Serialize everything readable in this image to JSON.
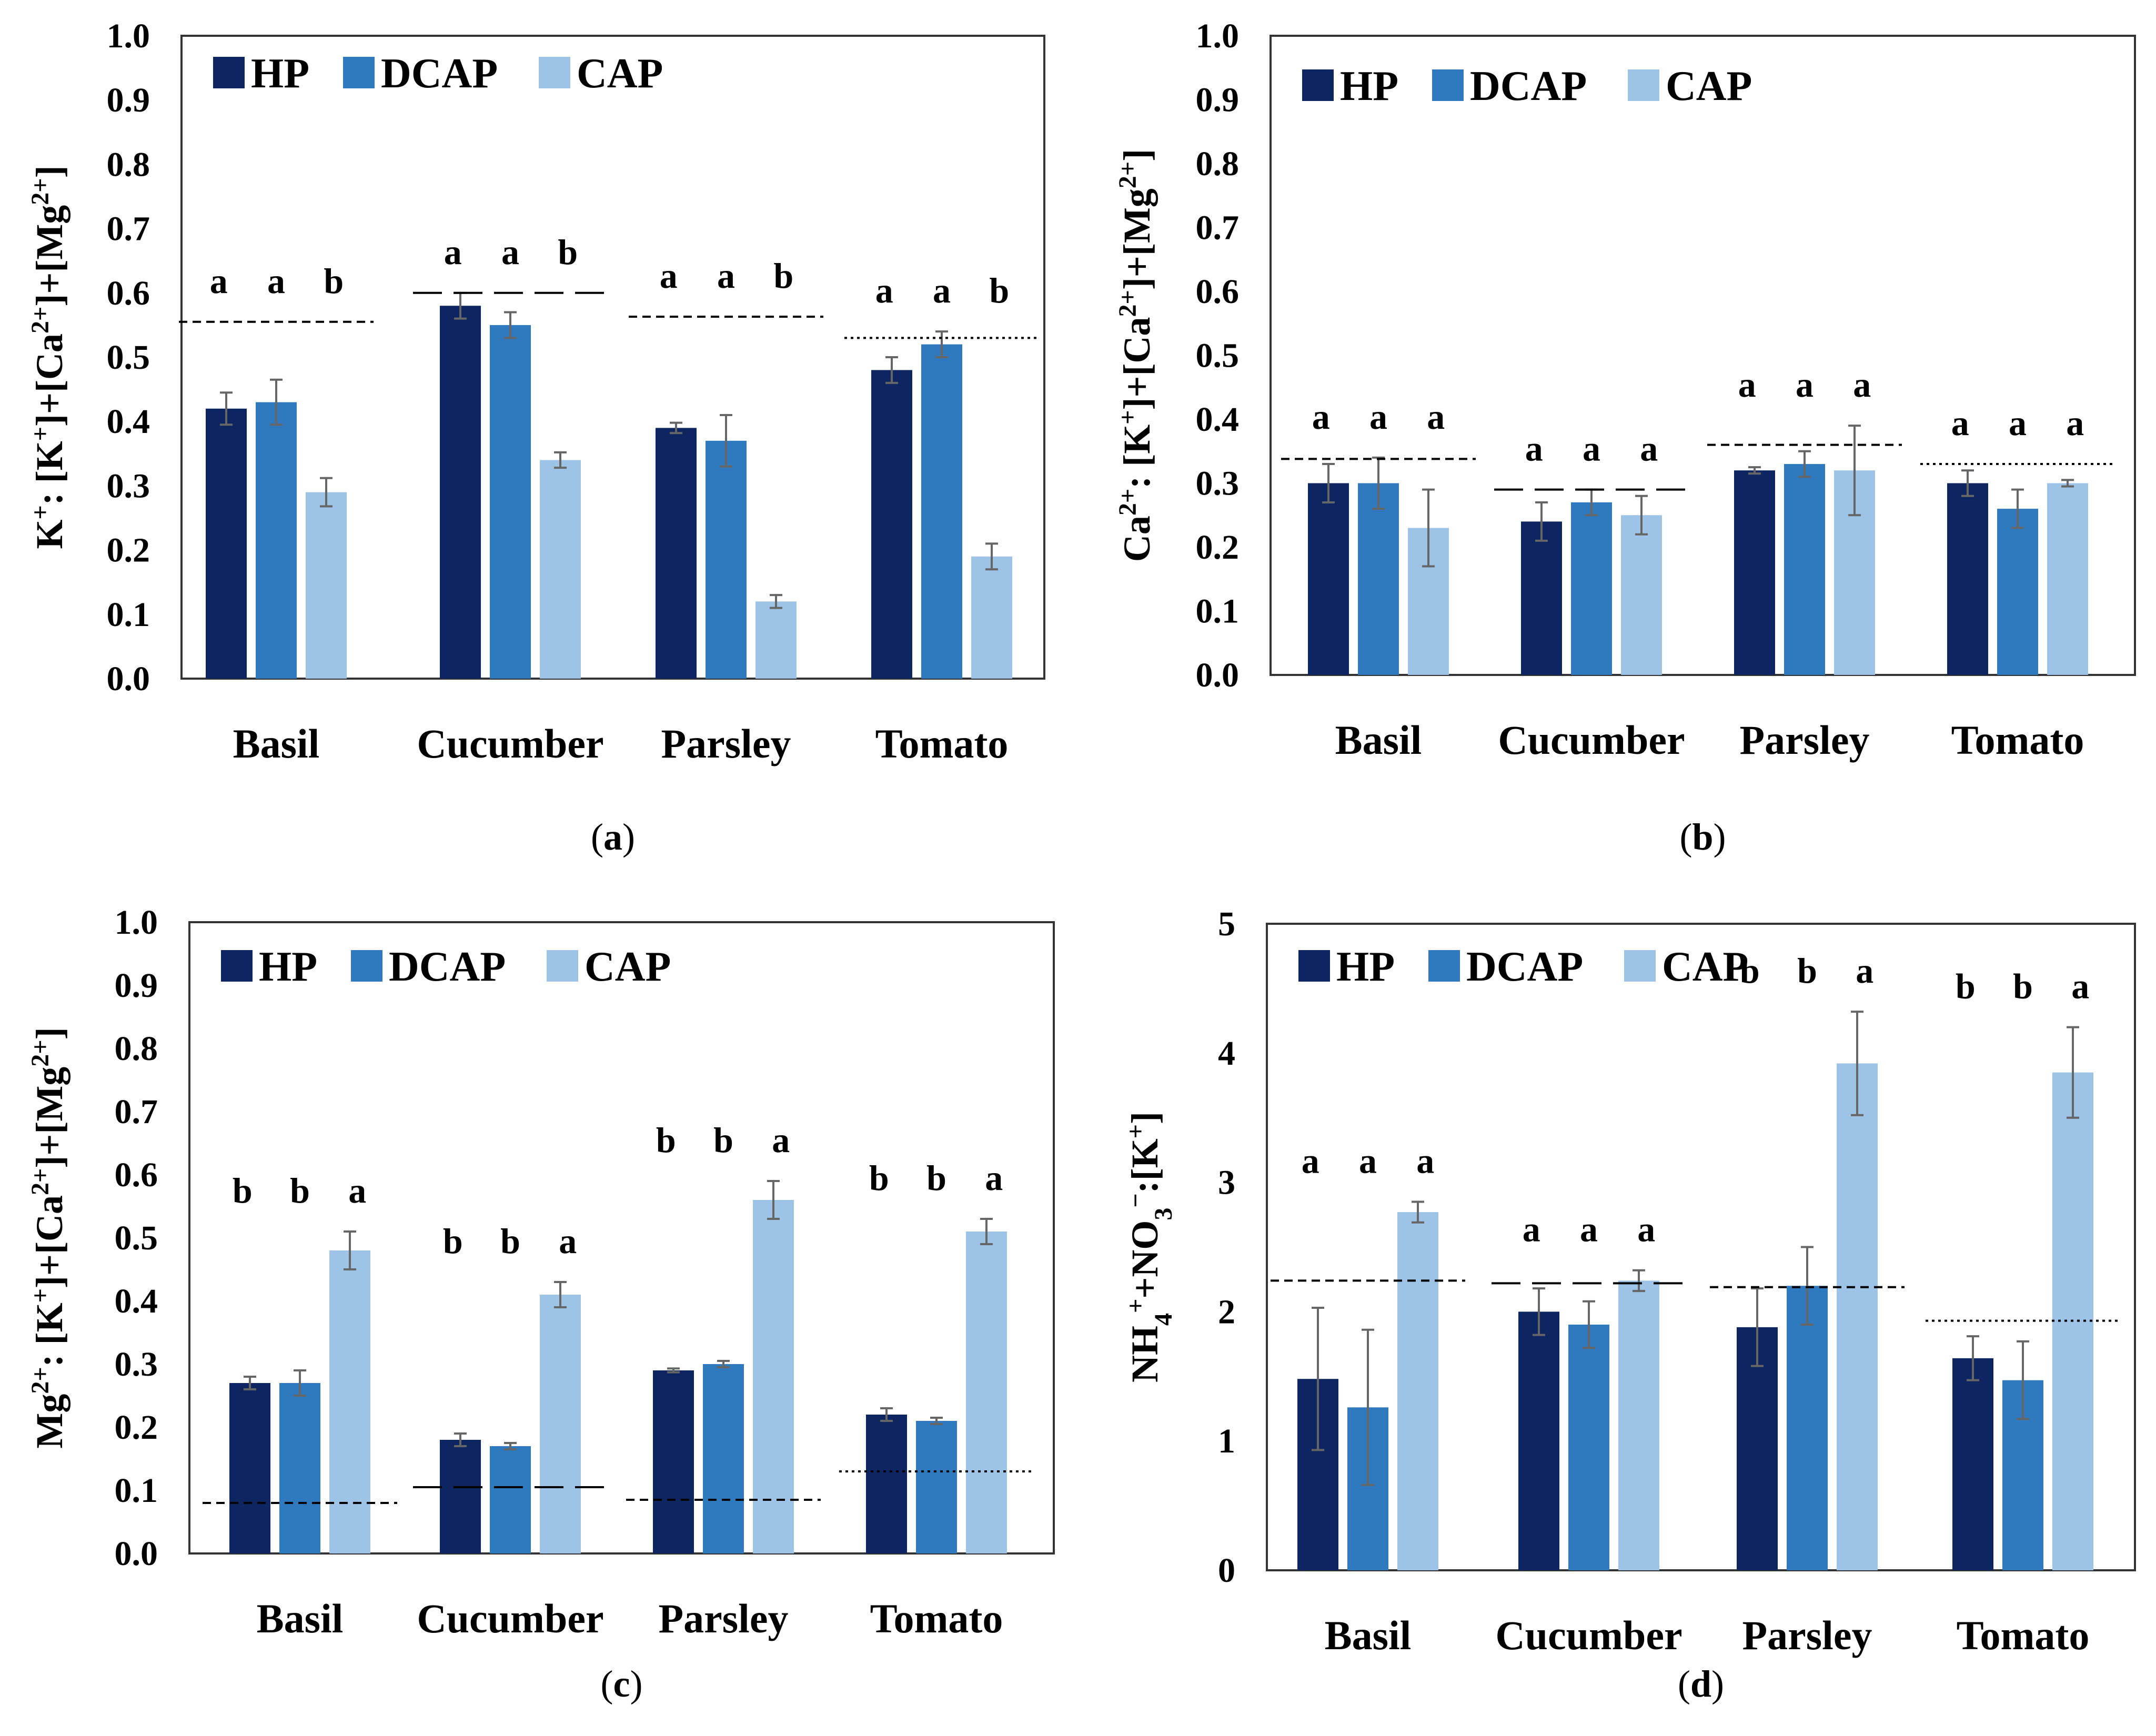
{
  "colors": {
    "HP": "#0d2560",
    "DCAP": "#2f7abf",
    "CAP": "#9dc3e6",
    "frame": "#333333",
    "err": "#666666"
  },
  "charts": [
    {
      "id": "a",
      "panel_label": [
        "(",
        "a",
        ")"
      ],
      "ylabel": [
        {
          "t": "K"
        },
        {
          "t": "+",
          "sup": true
        },
        {
          "t": ": [K"
        },
        {
          "t": "+",
          "sup": true
        },
        {
          "t": "]+[Ca"
        },
        {
          "t": "2+",
          "sup": true
        },
        {
          "t": "]+[Mg"
        },
        {
          "t": "2+",
          "sup": true
        },
        {
          "t": "]"
        }
      ],
      "yticks": [
        "0.0",
        "0.1",
        "0.2",
        "0.3",
        "0.4",
        "0.5",
        "0.6",
        "0.7",
        "0.8",
        "0.9",
        "1.0"
      ],
      "ymax": 1.0,
      "legend": [
        "HP",
        "DCAP",
        "CAP"
      ],
      "chart_data": {
        "type": "bar",
        "categories": [
          "Basil",
          "Cucumber",
          "Parsley",
          "Tomato"
        ],
        "series": [
          {
            "name": "HP",
            "values": [
              0.42,
              0.58,
              0.39,
              0.48
            ],
            "errors": [
              0.025,
              0.02,
              0.008,
              0.02
            ]
          },
          {
            "name": "DCAP",
            "values": [
              0.43,
              0.55,
              0.37,
              0.52
            ],
            "errors": [
              0.035,
              0.02,
              0.04,
              0.02
            ]
          },
          {
            "name": "CAP",
            "values": [
              0.29,
              0.34,
              0.12,
              0.19
            ],
            "errors": [
              0.022,
              0.012,
              0.01,
              0.02
            ]
          }
        ],
        "letters": [
          [
            "a",
            "a",
            "b"
          ],
          [
            "a",
            "a",
            "b"
          ],
          [
            "a",
            "a",
            "b"
          ],
          [
            "a",
            "a",
            "b"
          ]
        ],
        "reference_lines": [
          {
            "value": 0.555,
            "style": "dashed"
          },
          {
            "value": 0.6,
            "style": "longdash"
          },
          {
            "value": 0.563,
            "style": "dashed"
          },
          {
            "value": 0.53,
            "style": "dotted"
          }
        ],
        "ylim": [
          0,
          1.0
        ]
      }
    },
    {
      "id": "b",
      "panel_label": [
        "(",
        "b",
        ")"
      ],
      "ylabel": [
        {
          "t": "Ca"
        },
        {
          "t": "2+",
          "sup": true
        },
        {
          "t": ": [K"
        },
        {
          "t": "+",
          "sup": true
        },
        {
          "t": "]+[Ca"
        },
        {
          "t": "2+",
          "sup": true
        },
        {
          "t": "]+[Mg"
        },
        {
          "t": "2+",
          "sup": true
        },
        {
          "t": "]"
        }
      ],
      "yticks": [
        "0.0",
        "0.1",
        "0.2",
        "0.3",
        "0.4",
        "0.5",
        "0.6",
        "0.7",
        "0.8",
        "0.9",
        "1.0"
      ],
      "ymax": 1.0,
      "legend": [
        "HP",
        "DCAP",
        "CAP"
      ],
      "chart_data": {
        "type": "bar",
        "categories": [
          "Basil",
          "Cucumber",
          "Parsley",
          "Tomato"
        ],
        "series": [
          {
            "name": "HP",
            "values": [
              0.3,
              0.24,
              0.32,
              0.3
            ],
            "errors": [
              0.03,
              0.03,
              0.005,
              0.02
            ]
          },
          {
            "name": "DCAP",
            "values": [
              0.3,
              0.27,
              0.33,
              0.26
            ],
            "errors": [
              0.04,
              0.02,
              0.02,
              0.03
            ]
          },
          {
            "name": "CAP",
            "values": [
              0.23,
              0.25,
              0.32,
              0.3
            ],
            "errors": [
              0.06,
              0.03,
              0.07,
              0.005
            ]
          }
        ],
        "letters": [
          [
            "a",
            "a",
            "a"
          ],
          [
            "a",
            "a",
            "a"
          ],
          [
            "a",
            "a",
            "a"
          ],
          [
            "a",
            "a",
            "a"
          ]
        ],
        "reference_lines": [
          {
            "value": 0.338,
            "style": "dashed"
          },
          {
            "value": 0.29,
            "style": "longdash"
          },
          {
            "value": 0.36,
            "style": "dashed"
          },
          {
            "value": 0.33,
            "style": "dotted"
          }
        ],
        "ylim": [
          0,
          1.0
        ]
      }
    },
    {
      "id": "c",
      "panel_label": [
        "(",
        "c",
        ")"
      ],
      "ylabel": [
        {
          "t": "Mg"
        },
        {
          "t": "2+",
          "sup": true
        },
        {
          "t": ": [K"
        },
        {
          "t": "+",
          "sup": true
        },
        {
          "t": "]+[Ca"
        },
        {
          "t": "2+",
          "sup": true
        },
        {
          "t": "]+[Mg"
        },
        {
          "t": "2+",
          "sup": true
        },
        {
          "t": "]"
        }
      ],
      "yticks": [
        "0.0",
        "0.1",
        "0.2",
        "0.3",
        "0.4",
        "0.5",
        "0.6",
        "0.7",
        "0.8",
        "0.9",
        "1.0"
      ],
      "ymax": 1.0,
      "legend": [
        "HP",
        "DCAP",
        "CAP"
      ],
      "chart_data": {
        "type": "bar",
        "categories": [
          "Basil",
          "Cucumber",
          "Parsley",
          "Tomato"
        ],
        "series": [
          {
            "name": "HP",
            "values": [
              0.27,
              0.18,
              0.29,
              0.22
            ],
            "errors": [
              0.01,
              0.01,
              0.003,
              0.01
            ]
          },
          {
            "name": "DCAP",
            "values": [
              0.27,
              0.17,
              0.3,
              0.21
            ],
            "errors": [
              0.02,
              0.005,
              0.005,
              0.005
            ]
          },
          {
            "name": "CAP",
            "values": [
              0.48,
              0.41,
              0.56,
              0.51
            ],
            "errors": [
              0.03,
              0.02,
              0.03,
              0.02
            ]
          }
        ],
        "letters": [
          [
            "b",
            "b",
            "a"
          ],
          [
            "b",
            "b",
            "a"
          ],
          [
            "b",
            "b",
            "a"
          ],
          [
            "b",
            "b",
            "a"
          ]
        ],
        "reference_lines": [
          {
            "value": 0.08,
            "style": "dashed"
          },
          {
            "value": 0.105,
            "style": "longdash"
          },
          {
            "value": 0.085,
            "style": "dashed"
          },
          {
            "value": 0.13,
            "style": "dotted"
          }
        ],
        "ylim": [
          0,
          1.0
        ]
      }
    },
    {
      "id": "d",
      "panel_label": [
        "(",
        "d",
        ")"
      ],
      "ylabel": [
        {
          "t": "NH"
        },
        {
          "t": "4",
          "sub": true
        },
        {
          "t": "+",
          "sup": true
        },
        {
          "t": "+NO"
        },
        {
          "t": "3",
          "sub": true
        },
        {
          "t": "−",
          "sup": true
        },
        {
          "t": ":[K"
        },
        {
          "t": "+",
          "sup": true
        },
        {
          "t": "]"
        }
      ],
      "yticks": [
        "0",
        "1",
        "2",
        "3",
        "4",
        "5"
      ],
      "ymax": 5,
      "legend": [
        "HP",
        "DCAP",
        "CAP"
      ],
      "chart_data": {
        "type": "bar",
        "categories": [
          "Basil",
          "Cucumber",
          "Parsley",
          "Tomato"
        ],
        "series": [
          {
            "name": "HP",
            "values": [
              1.48,
              2.0,
              1.88,
              1.64
            ],
            "errors": [
              0.55,
              0.18,
              0.3,
              0.17
            ]
          },
          {
            "name": "DCAP",
            "values": [
              1.26,
              1.9,
              2.2,
              1.47
            ],
            "errors": [
              0.6,
              0.18,
              0.3,
              0.3
            ]
          },
          {
            "name": "CAP",
            "values": [
              2.77,
              2.24,
              3.92,
              3.85
            ],
            "errors": [
              0.08,
              0.08,
              0.4,
              0.35
            ]
          }
        ],
        "letters": [
          [
            "a",
            "a",
            "a"
          ],
          [
            "a",
            "a",
            "a"
          ],
          [
            "b",
            "b",
            "a"
          ],
          [
            "b",
            "b",
            "a"
          ]
        ],
        "reference_lines": [
          {
            "value": 2.24,
            "style": "dashed"
          },
          {
            "value": 2.22,
            "style": "longdash"
          },
          {
            "value": 2.19,
            "style": "dashed"
          },
          {
            "value": 1.93,
            "style": "dotted"
          }
        ],
        "ylim": [
          0,
          5
        ]
      }
    }
  ]
}
